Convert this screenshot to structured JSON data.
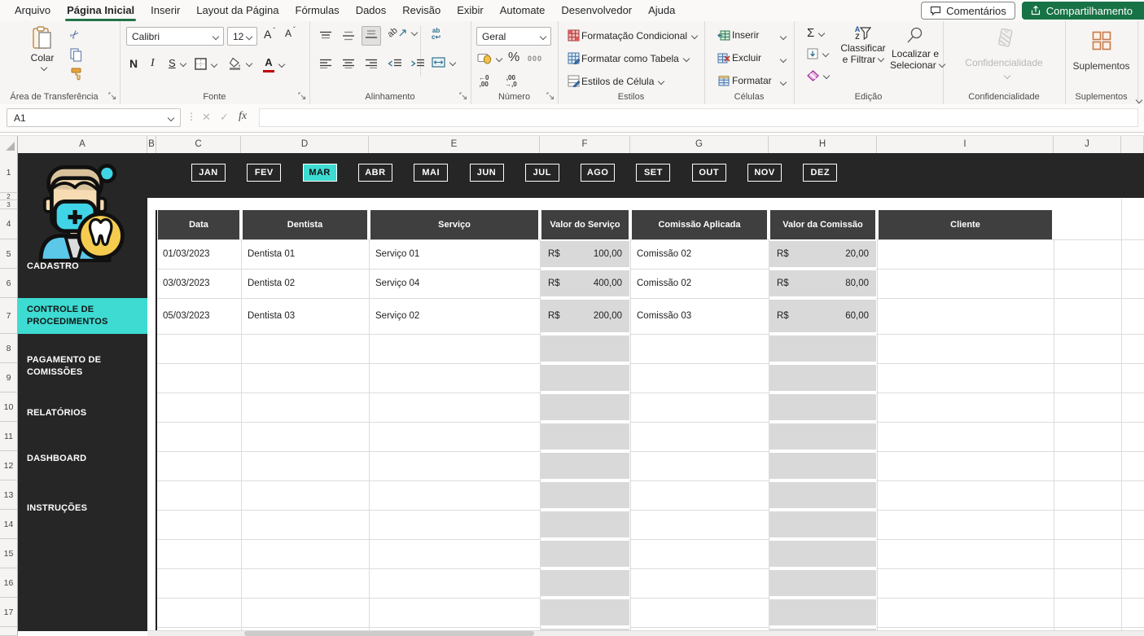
{
  "menubar": {
    "tabs": [
      "Arquivo",
      "Página Inicial",
      "Inserir",
      "Layout da Página",
      "Fórmulas",
      "Dados",
      "Revisão",
      "Exibir",
      "Automate",
      "Desenvolvedor",
      "Ajuda"
    ],
    "active_tab": "Página Inicial",
    "comments_button": "Comentários",
    "share_button": "Compartilhamento"
  },
  "ribbon": {
    "clipboard": {
      "paste": "Colar",
      "group": "Área de Transferência"
    },
    "font": {
      "family": "Calibri",
      "size": "12",
      "bold": "N",
      "italic": "I",
      "underline": "S",
      "color_letter": "A",
      "grow": "A",
      "shrink": "A",
      "group": "Fonte"
    },
    "alignment": {
      "wrap_top": "ab",
      "wrap_bottom": "c↩",
      "orient": "ab",
      "group": "Alinhamento"
    },
    "number": {
      "format": "Geral",
      "percent": "%",
      "thousands": "000",
      "dec_left": "←0\n,00",
      "dec_right": ",00\n→,0",
      "group": "Número"
    },
    "styles": {
      "conditional": "Formatação Condicional",
      "as_table": "Formatar como Tabela",
      "cell_styles": "Estilos de Célula",
      "group": "Estilos"
    },
    "cells": {
      "insert": "Inserir",
      "delete": "Excluir",
      "format": "Formatar",
      "group": "Células"
    },
    "editing": {
      "sum": "Σ",
      "sort_a": "A",
      "sort_z": "Z",
      "sort_line1": "Classificar",
      "sort_line2": "e Filtrar",
      "find_line1": "Localizar e",
      "find_line2": "Selecionar",
      "group": "Edição"
    },
    "sensitivity": {
      "label": "Confidencialidade",
      "group": "Confidencialidade"
    },
    "addins": {
      "label": "Suplementos",
      "group": "Suplementos"
    }
  },
  "formula_bar": {
    "cell_ref": "A1",
    "fx": "fx",
    "formula": ""
  },
  "grid": {
    "columns": [
      "A",
      "B",
      "C",
      "D",
      "E",
      "F",
      "G",
      "H",
      "I",
      "J"
    ],
    "rows": [
      "1",
      "2",
      "3",
      "4",
      "5",
      "6",
      "7",
      "8",
      "9",
      "10",
      "11",
      "12",
      "13",
      "14",
      "15",
      "16",
      "17"
    ]
  },
  "months": {
    "items": [
      "JAN",
      "FEV",
      "MAR",
      "ABR",
      "MAI",
      "JUN",
      "JUL",
      "AGO",
      "SET",
      "OUT",
      "NOV",
      "DEZ"
    ],
    "active": "MAR"
  },
  "sidebar": {
    "items": [
      {
        "lines": [
          "CADASTRO"
        ],
        "active": false
      },
      {
        "lines": [
          "CONTROLE DE",
          "PROCEDIMENTOS"
        ],
        "active": true
      },
      {
        "lines": [
          "PAGAMENTO DE",
          "COMISSÕES"
        ],
        "active": false
      },
      {
        "lines": [
          "RELATÓRIOS"
        ],
        "active": false
      },
      {
        "lines": [
          "DASHBOARD"
        ],
        "active": false
      },
      {
        "lines": [
          "INSTRUÇÕES"
        ],
        "active": false
      }
    ]
  },
  "table": {
    "headers": [
      "Data",
      "Dentista",
      "Serviço",
      "Valor do Serviço",
      "Comissão Aplicada",
      "Valor da Comissão",
      "Cliente"
    ],
    "currency": "R$",
    "rows": [
      {
        "data": "01/03/2023",
        "dentista": "Dentista 01",
        "servico": "Serviço 01",
        "valor_servico": "100,00",
        "comissao": "Comissão 02",
        "valor_comissao": "20,00",
        "cliente": ""
      },
      {
        "data": "03/03/2023",
        "dentista": "Dentista 02",
        "servico": "Serviço 04",
        "valor_servico": "400,00",
        "comissao": "Comissão 02",
        "valor_comissao": "80,00",
        "cliente": ""
      },
      {
        "data": "05/03/2023",
        "dentista": "Dentista 03",
        "servico": "Serviço 02",
        "valor_servico": "200,00",
        "comissao": "Comissão 03",
        "valor_comissao": "60,00",
        "cliente": ""
      }
    ]
  },
  "colors": {
    "accent": "#3DDBD2",
    "panel_dark": "#262626",
    "table_header": "#3F3F3F",
    "value_cell_gray": "#D9D9D9",
    "office_green": "#177245",
    "tab_underline_green": "#217346"
  }
}
